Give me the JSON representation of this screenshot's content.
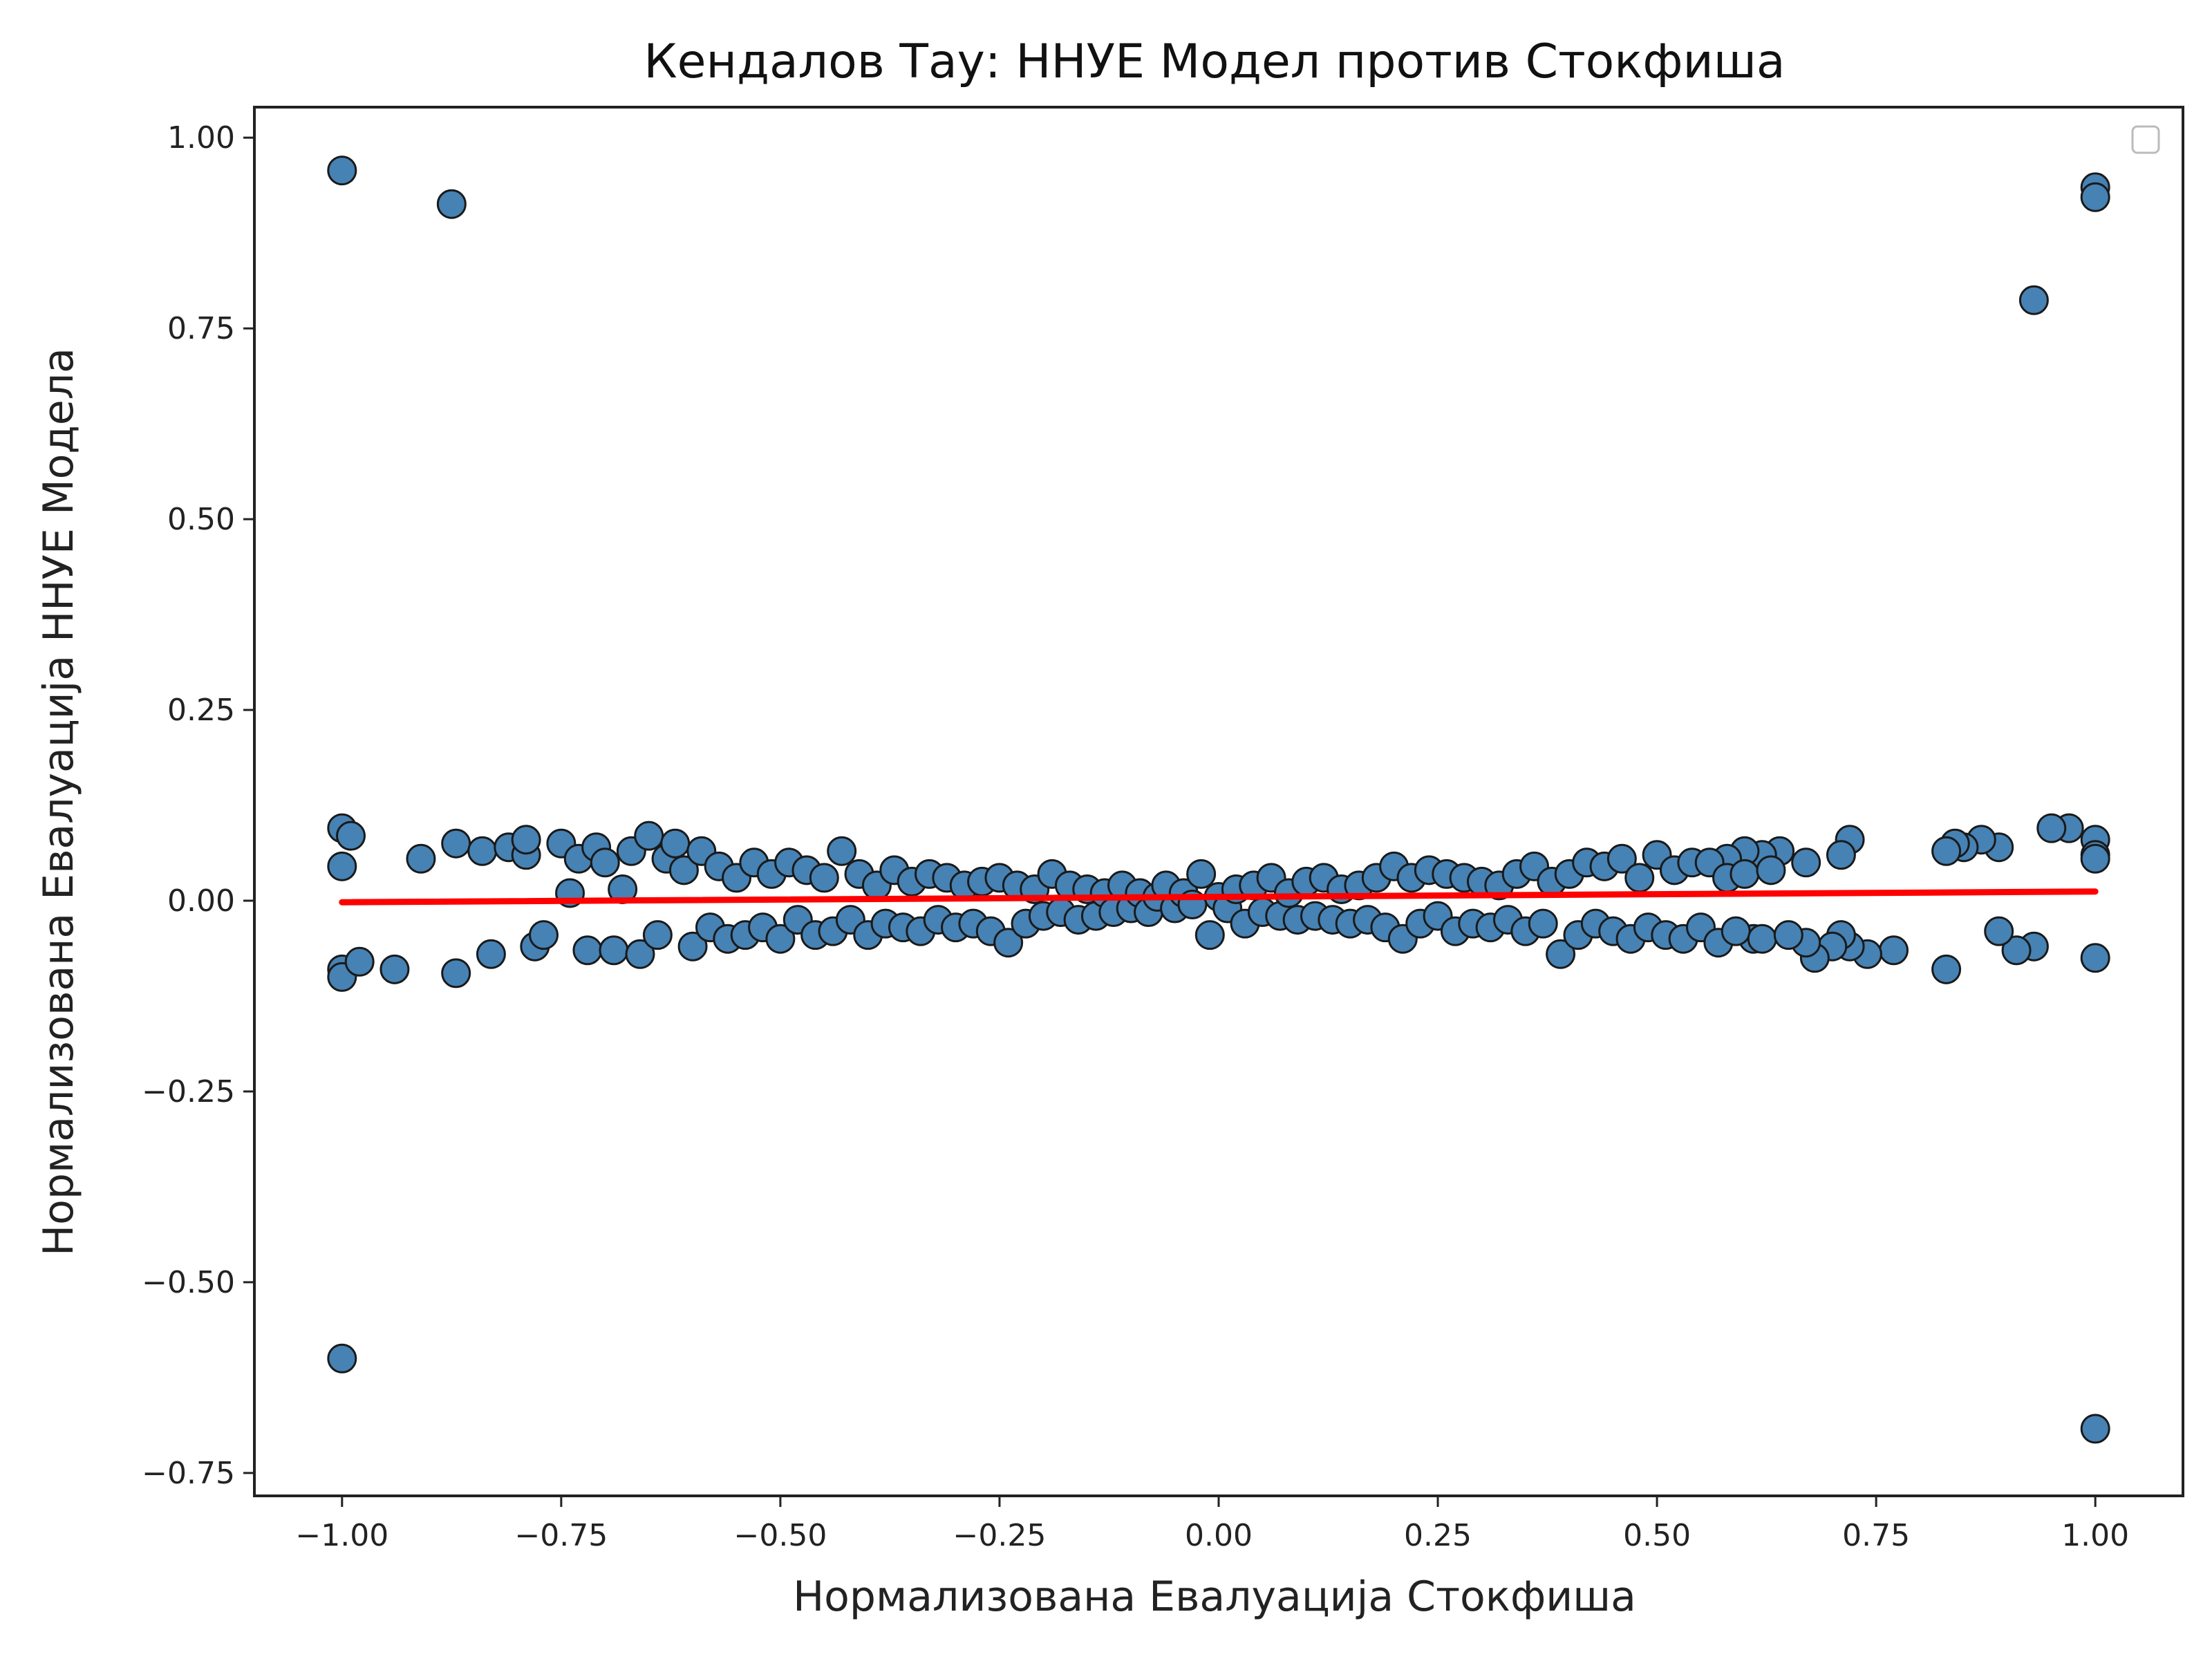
{
  "chart_data": {
    "type": "scatter",
    "title": "Кендалов Тау: ННУЕ Модел против Стокфиша",
    "xlabel": "Нормализована Евалуација Стокфиша",
    "ylabel": "Нормализована Евалуација ННУЕ Модела",
    "xlim": [
      -1.1,
      1.1
    ],
    "ylim": [
      -0.78,
      1.04
    ],
    "x_ticks": [
      -1.0,
      -0.75,
      -0.5,
      -0.25,
      0.0,
      0.25,
      0.5,
      0.75,
      1.0
    ],
    "x_tick_labels": [
      "−1.00",
      "−0.75",
      "−0.50",
      "−0.25",
      "0.00",
      "0.25",
      "0.50",
      "0.75",
      "1.00"
    ],
    "y_ticks": [
      -0.75,
      -0.5,
      -0.25,
      0.0,
      0.25,
      0.5,
      0.75,
      1.0
    ],
    "y_tick_labels": [
      "−0.75",
      "−0.50",
      "−0.25",
      "0.00",
      "0.25",
      "0.50",
      "0.75",
      "1.00"
    ],
    "grid": false,
    "legend": "top-right (empty)",
    "series": [
      {
        "type": "scatter",
        "color": "#4682b4",
        "edge_color": "#1a1a1a",
        "points": [
          [
            -1.0,
            0.957
          ],
          [
            -0.875,
            0.913
          ],
          [
            0.93,
            0.787
          ],
          [
            1.0,
            0.935
          ],
          [
            1.0,
            0.922
          ],
          [
            -1.0,
            -0.6
          ],
          [
            1.0,
            -0.692
          ],
          [
            -1.0,
            0.095
          ],
          [
            -1.0,
            0.045
          ],
          [
            -0.99,
            0.085
          ],
          [
            -1.0,
            -0.09
          ],
          [
            -1.0,
            -0.1
          ],
          [
            -0.98,
            -0.08
          ],
          [
            -0.94,
            -0.09
          ],
          [
            -0.91,
            0.055
          ],
          [
            -0.87,
            0.075
          ],
          [
            -0.87,
            -0.095
          ],
          [
            -0.84,
            0.065
          ],
          [
            -0.83,
            -0.07
          ],
          [
            -0.81,
            0.07
          ],
          [
            -0.79,
            0.06
          ],
          [
            -0.79,
            0.08
          ],
          [
            -0.78,
            -0.06
          ],
          [
            -0.77,
            -0.045
          ],
          [
            1.0,
            0.08
          ],
          [
            1.0,
            0.06
          ],
          [
            1.0,
            0.055
          ],
          [
            1.0,
            -0.075
          ],
          [
            0.97,
            0.095
          ],
          [
            0.95,
            0.095
          ],
          [
            0.93,
            -0.06
          ],
          [
            0.91,
            -0.065
          ],
          [
            0.89,
            -0.04
          ],
          [
            0.89,
            0.07
          ],
          [
            0.87,
            0.08
          ],
          [
            0.85,
            0.07
          ],
          [
            0.84,
            0.075
          ],
          [
            0.83,
            -0.09
          ],
          [
            0.83,
            0.065
          ],
          [
            0.77,
            -0.065
          ],
          [
            0.74,
            -0.07
          ],
          [
            0.72,
            0.08
          ],
          [
            0.72,
            -0.06
          ],
          [
            0.71,
            -0.045
          ],
          [
            0.71,
            0.06
          ],
          [
            0.7,
            -0.06
          ],
          [
            0.68,
            -0.075
          ],
          [
            0.67,
            -0.055
          ],
          [
            0.67,
            0.05
          ],
          [
            0.64,
            0.065
          ],
          [
            0.62,
            0.06
          ],
          [
            0.61,
            -0.05
          ],
          [
            0.6,
            0.065
          ],
          [
            0.58,
            0.055
          ],
          [
            -0.75,
            0.075
          ],
          [
            -0.74,
            0.01
          ],
          [
            -0.73,
            0.055
          ],
          [
            -0.72,
            -0.065
          ],
          [
            -0.71,
            0.07
          ],
          [
            -0.7,
            0.05
          ],
          [
            -0.69,
            -0.065
          ],
          [
            -0.68,
            0.015
          ],
          [
            -0.67,
            0.065
          ],
          [
            -0.66,
            -0.07
          ],
          [
            -0.65,
            0.085
          ],
          [
            -0.64,
            -0.045
          ],
          [
            -0.63,
            0.055
          ],
          [
            -0.62,
            0.075
          ],
          [
            -0.61,
            0.04
          ],
          [
            -0.6,
            -0.06
          ],
          [
            -0.59,
            0.065
          ],
          [
            -0.58,
            -0.035
          ],
          [
            -0.57,
            0.045
          ],
          [
            -0.56,
            -0.05
          ],
          [
            -0.55,
            0.03
          ],
          [
            -0.54,
            -0.045
          ],
          [
            -0.53,
            0.05
          ],
          [
            -0.52,
            -0.035
          ],
          [
            -0.51,
            0.035
          ],
          [
            -0.5,
            -0.05
          ],
          [
            -0.49,
            0.05
          ],
          [
            -0.48,
            -0.025
          ],
          [
            -0.47,
            0.04
          ],
          [
            -0.46,
            -0.045
          ],
          [
            -0.45,
            0.03
          ],
          [
            -0.44,
            -0.04
          ],
          [
            -0.43,
            0.065
          ],
          [
            -0.42,
            -0.025
          ],
          [
            -0.41,
            0.035
          ],
          [
            -0.4,
            -0.045
          ],
          [
            -0.39,
            0.02
          ],
          [
            -0.38,
            -0.03
          ],
          [
            -0.37,
            0.04
          ],
          [
            -0.36,
            -0.035
          ],
          [
            -0.35,
            0.025
          ],
          [
            -0.34,
            -0.04
          ],
          [
            -0.33,
            0.035
          ],
          [
            -0.32,
            -0.025
          ],
          [
            -0.31,
            0.03
          ],
          [
            -0.3,
            -0.035
          ],
          [
            -0.29,
            0.02
          ],
          [
            -0.28,
            -0.03
          ],
          [
            -0.27,
            0.025
          ],
          [
            -0.26,
            -0.04
          ],
          [
            -0.25,
            0.03
          ],
          [
            -0.24,
            -0.055
          ],
          [
            -0.23,
            0.02
          ],
          [
            -0.22,
            -0.03
          ],
          [
            -0.21,
            0.015
          ],
          [
            -0.2,
            -0.02
          ],
          [
            -0.19,
            0.035
          ],
          [
            -0.18,
            -0.015
          ],
          [
            -0.17,
            0.02
          ],
          [
            -0.16,
            -0.025
          ],
          [
            -0.15,
            0.015
          ],
          [
            -0.14,
            -0.02
          ],
          [
            -0.13,
            0.01
          ],
          [
            -0.12,
            -0.015
          ],
          [
            -0.11,
            0.02
          ],
          [
            -0.1,
            -0.01
          ],
          [
            -0.09,
            0.01
          ],
          [
            -0.08,
            -0.015
          ],
          [
            -0.07,
            0.005
          ],
          [
            -0.06,
            0.02
          ],
          [
            -0.05,
            -0.01
          ],
          [
            -0.04,
            0.01
          ],
          [
            -0.03,
            -0.005
          ],
          [
            -0.02,
            0.035
          ],
          [
            -0.01,
            -0.045
          ],
          [
            0.0,
            0.005
          ],
          [
            0.01,
            -0.01
          ],
          [
            0.02,
            0.015
          ],
          [
            0.03,
            -0.03
          ],
          [
            0.04,
            0.02
          ],
          [
            0.05,
            -0.015
          ],
          [
            0.06,
            0.03
          ],
          [
            0.07,
            -0.02
          ],
          [
            0.08,
            0.01
          ],
          [
            0.09,
            -0.025
          ],
          [
            0.1,
            0.025
          ],
          [
            0.11,
            -0.02
          ],
          [
            0.12,
            0.03
          ],
          [
            0.13,
            -0.025
          ],
          [
            0.14,
            0.015
          ],
          [
            0.15,
            -0.03
          ],
          [
            0.16,
            0.02
          ],
          [
            0.17,
            -0.025
          ],
          [
            0.18,
            0.03
          ],
          [
            0.19,
            -0.035
          ],
          [
            0.2,
            0.045
          ],
          [
            0.21,
            -0.05
          ],
          [
            0.22,
            0.03
          ],
          [
            0.23,
            -0.03
          ],
          [
            0.24,
            0.04
          ],
          [
            0.25,
            -0.02
          ],
          [
            0.26,
            0.035
          ],
          [
            0.27,
            -0.04
          ],
          [
            0.28,
            0.03
          ],
          [
            0.29,
            -0.03
          ],
          [
            0.3,
            0.025
          ],
          [
            0.31,
            -0.035
          ],
          [
            0.32,
            0.02
          ],
          [
            0.33,
            -0.025
          ],
          [
            0.34,
            0.035
          ],
          [
            0.35,
            -0.04
          ],
          [
            0.36,
            0.045
          ],
          [
            0.37,
            -0.03
          ],
          [
            0.38,
            0.025
          ],
          [
            0.39,
            -0.07
          ],
          [
            0.4,
            0.035
          ],
          [
            0.41,
            -0.045
          ],
          [
            0.42,
            0.05
          ],
          [
            0.43,
            -0.03
          ],
          [
            0.44,
            0.045
          ],
          [
            0.45,
            -0.04
          ],
          [
            0.46,
            0.055
          ],
          [
            0.47,
            -0.05
          ],
          [
            0.48,
            0.03
          ],
          [
            0.49,
            -0.035
          ],
          [
            0.5,
            0.06
          ],
          [
            0.51,
            -0.045
          ],
          [
            0.52,
            0.04
          ],
          [
            0.53,
            -0.05
          ],
          [
            0.54,
            0.05
          ],
          [
            0.55,
            -0.035
          ],
          [
            0.56,
            0.05
          ],
          [
            0.57,
            -0.055
          ],
          [
            0.58,
            0.03
          ],
          [
            0.59,
            -0.04
          ],
          [
            0.6,
            0.035
          ],
          [
            0.62,
            -0.05
          ],
          [
            0.63,
            0.04
          ],
          [
            0.65,
            -0.045
          ]
        ]
      },
      {
        "type": "line",
        "color": "#ff0000",
        "points": [
          [
            -1.0,
            -0.002
          ],
          [
            1.0,
            0.012
          ]
        ]
      }
    ]
  }
}
